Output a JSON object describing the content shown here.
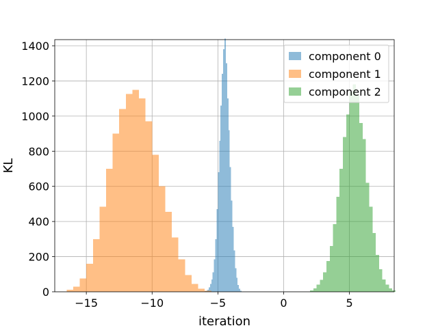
{
  "chart_data": {
    "type": "histogram",
    "xlabel": "iteration",
    "ylabel": "KL",
    "xlim": [
      -17.4,
      8.4
    ],
    "ylim": [
      0,
      1435
    ],
    "xticks": [
      -15,
      -10,
      -5,
      0,
      5
    ],
    "xtick_labels": [
      "−15",
      "−10",
      "−5",
      "0",
      "5"
    ],
    "yticks": [
      0,
      200,
      400,
      600,
      800,
      1000,
      1200,
      1400
    ],
    "ytick_labels": [
      "0",
      "200",
      "400",
      "600",
      "800",
      "1000",
      "1200",
      "1400"
    ],
    "grid": true,
    "legend_position": "top-right",
    "series": [
      {
        "name": "component 0",
        "color": "#1f77b4",
        "alpha": 0.5,
        "bin_start": -6.0,
        "bin_width": 0.1,
        "counts": [
          3,
          5,
          12,
          25,
          45,
          70,
          110,
          185,
          300,
          470,
          680,
          860,
          1060,
          1240,
          1380,
          1440,
          1300,
          1100,
          920,
          710,
          520,
          370,
          235,
          135,
          80,
          38,
          18,
          6
        ]
      },
      {
        "name": "component 1",
        "color": "#ff7f0e",
        "alpha": 0.5,
        "bin_start": -16.5,
        "bin_width": 0.5,
        "counts": [
          12,
          30,
          75,
          160,
          300,
          485,
          700,
          900,
          1040,
          1125,
          1150,
          1100,
          970,
          780,
          600,
          455,
          310,
          185,
          95,
          45,
          18,
          6
        ]
      },
      {
        "name": "component 2",
        "color": "#2ca02c",
        "alpha": 0.5,
        "bin_start": 2.0,
        "bin_width": 0.25,
        "counts": [
          8,
          20,
          40,
          68,
          110,
          175,
          260,
          385,
          540,
          700,
          880,
          1010,
          1140,
          1180,
          1120,
          960,
          870,
          620,
          485,
          335,
          210,
          128,
          70,
          40,
          20,
          8
        ]
      }
    ]
  }
}
